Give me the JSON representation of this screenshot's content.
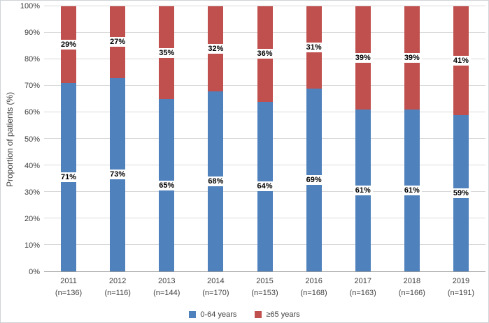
{
  "chart_data": {
    "type": "bar",
    "stacked": true,
    "title": "",
    "xlabel": "",
    "ylabel": "Proportion of patients (%)",
    "ylim": [
      0,
      100
    ],
    "ytick_step": 10,
    "ytick_suffix": "%",
    "grid": true,
    "legend_position": "bottom",
    "categories": [
      "2011",
      "2012",
      "2013",
      "2014",
      "2015",
      "2016",
      "2017",
      "2018",
      "2019"
    ],
    "category_sublabels": [
      "(n=136)",
      "(n=116)",
      "(n=144)",
      "(n=170)",
      "(n=153)",
      "(n=168)",
      "(n=163)",
      "(n=166)",
      "(n=191)"
    ],
    "series": [
      {
        "name": "0-64 years",
        "color": "#4F81BD",
        "values": [
          71,
          73,
          65,
          68,
          64,
          69,
          61,
          61,
          59
        ]
      },
      {
        "name": "≥65 years",
        "color": "#C0504D",
        "values": [
          29,
          27,
          35,
          32,
          36,
          31,
          39,
          39,
          41
        ]
      }
    ],
    "data_label_suffix": "%"
  }
}
